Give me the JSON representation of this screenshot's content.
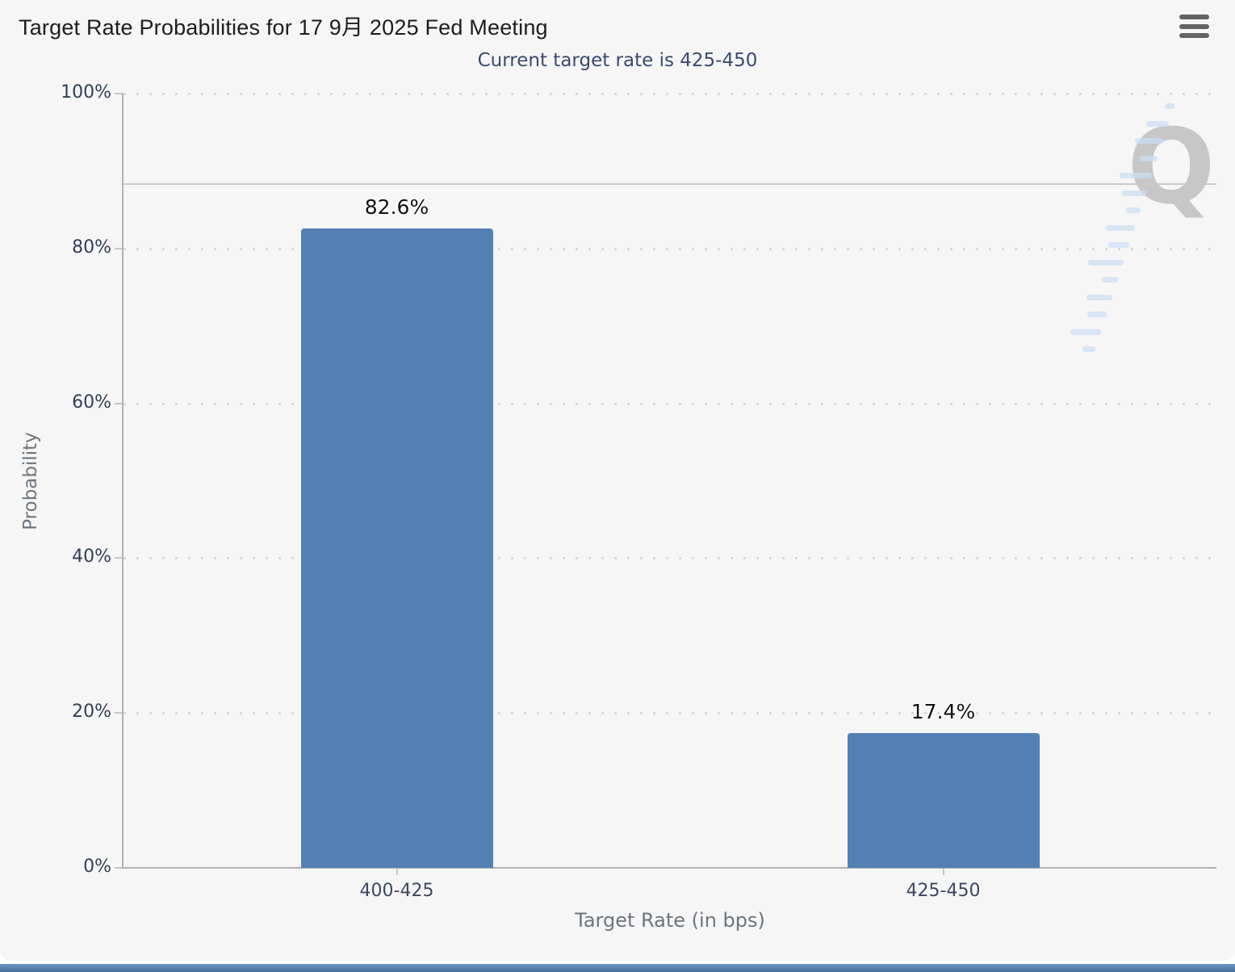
{
  "header": {
    "title": "Target Rate Probabilities for 17 9月 2025 Fed Meeting"
  },
  "chart_data": {
    "type": "bar",
    "title": "Target Rate Probabilities for 17 9月 2025 Fed Meeting",
    "subtitle": "Current target rate is 425-450",
    "categories": [
      "400-425",
      "425-450"
    ],
    "values": [
      82.6,
      17.4
    ],
    "data_labels": [
      "82.6%",
      "17.4%"
    ],
    "xlabel": "Target Rate (in bps)",
    "ylabel": "Probability",
    "ylim": [
      0,
      100
    ],
    "yticks": [
      {
        "value": 0,
        "label": "0%"
      },
      {
        "value": 20,
        "label": "20%"
      },
      {
        "value": 40,
        "label": "40%"
      },
      {
        "value": 60,
        "label": "60%"
      },
      {
        "value": 80,
        "label": "80%"
      },
      {
        "value": 100,
        "label": "100%"
      }
    ],
    "grid": "dotted-horizontal",
    "reference_line_y": 88.3,
    "legend_position": "none",
    "bar_color": "#5380B5"
  },
  "watermark": {
    "letter": "Q"
  },
  "colors": {
    "panel_background": "#f6f6f6",
    "bar": "#5380B5",
    "subtitle_text": "#3a4a6e",
    "axis_line": "#b1b1b1",
    "gridline": "#d9d9d9",
    "bottom_strip": "#4d7cb0"
  }
}
